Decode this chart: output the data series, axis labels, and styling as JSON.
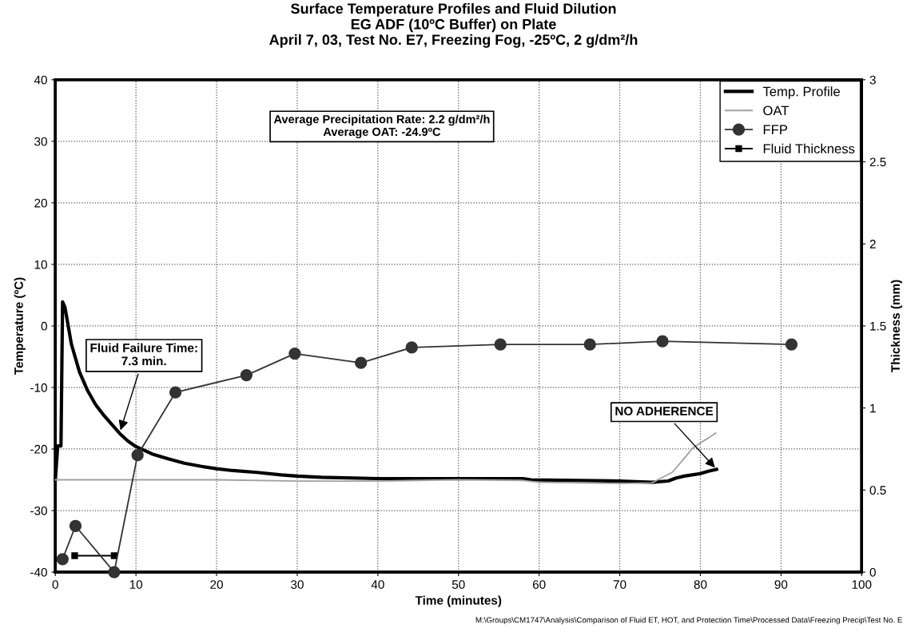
{
  "chart_data": {
    "type": "line",
    "title": "Surface Temperature Profiles and Fluid Dilution\nEG ADF (10ºC Buffer) on Plate\nApril 7, 03, Test No. E7, Freezing Fog, -25ºC, 2 g/dm²/h",
    "xlabel": "Time (minutes)",
    "ylabel": "Temperature (ºC)",
    "y2label": "Thickness (mm)",
    "xlim": [
      0,
      100
    ],
    "xticks": [
      0,
      10,
      20,
      30,
      40,
      50,
      60,
      70,
      80,
      90,
      100
    ],
    "ylim": [
      -40,
      40
    ],
    "yticks": [
      -40,
      -30,
      -20,
      -10,
      0,
      10,
      20,
      30,
      40
    ],
    "y2lim": [
      0,
      3
    ],
    "y2ticks": [
      0,
      0.5,
      1,
      1.5,
      2,
      2.5,
      3
    ],
    "grid": true,
    "legend": "top right",
    "line_style": "solid",
    "series": [
      {
        "name": "Temp. Profile",
        "color": "#000000",
        "marker": "none",
        "x": [
          0,
          0.3,
          0.7,
          0.9,
          1.2,
          2,
          3,
          4,
          5,
          6,
          7,
          8,
          9,
          10,
          12,
          14,
          16,
          18,
          20,
          22,
          25,
          28,
          30,
          33,
          40,
          50,
          58,
          59,
          70,
          74,
          76,
          77,
          78,
          80,
          81,
          82
        ],
        "values": [
          -25,
          -19.5,
          -19.5,
          3.9,
          3,
          -3,
          -7.5,
          -10.5,
          -12.8,
          -14.5,
          -16,
          -17.5,
          -18.7,
          -19.6,
          -20.8,
          -21.6,
          -22.3,
          -22.8,
          -23.2,
          -23.5,
          -23.8,
          -24.2,
          -24.4,
          -24.6,
          -24.8,
          -24.8,
          -24.8,
          -25,
          -25.2,
          -25.4,
          -25.2,
          -24.7,
          -24.4,
          -24,
          -23.6,
          -23.3
        ]
      },
      {
        "name": "OAT",
        "color": "#a0a0a0",
        "marker": "none",
        "x": [
          0,
          10,
          20,
          30,
          40,
          50,
          58,
          60,
          65,
          70,
          74,
          75,
          76.5,
          78,
          79,
          80,
          81,
          81.9
        ],
        "values": [
          -25,
          -25,
          -25,
          -25.2,
          -25.2,
          -25,
          -25.1,
          -25.4,
          -25.5,
          -25.6,
          -25.5,
          -24.8,
          -23.8,
          -21.5,
          -19.9,
          -19,
          -18.2,
          -17.4
        ]
      },
      {
        "name": "FFP",
        "color": "#333333",
        "marker": "circle",
        "x": [
          0.9,
          2.5,
          7.3,
          10.2,
          14.9,
          23.7,
          29.7,
          37.9,
          44.2,
          55.2,
          66.3,
          75.3,
          91.3
        ],
        "values": [
          -37.9,
          -32.5,
          -40,
          -21,
          -10.8,
          -8,
          -4.5,
          -6,
          -3.5,
          -3,
          -3,
          -2.5,
          -3
        ]
      },
      {
        "name": "Fluid Thickness",
        "color": "#000000",
        "marker": "square",
        "axis": "y2",
        "x": [
          2.4,
          7.3
        ],
        "values": [
          0.1,
          0.1
        ]
      }
    ],
    "annotations": [
      {
        "text": "Fluid Failure Time:\n7.3 min.",
        "x": 8,
        "y": -17.3
      },
      {
        "text": "NO ADHERENCE",
        "x": 82,
        "y": -23.3
      },
      "Average Precipitation Rate: 2.2 g/dm²/h\nAverage OAT: -24.9ºC",
      "M:\\Groups\\CM1747\\Analysis\\Comparison of Fluid ET, HOT, and Protection Time\\Processed Data\\Freezing Precip\\Test No. E"
    ]
  }
}
